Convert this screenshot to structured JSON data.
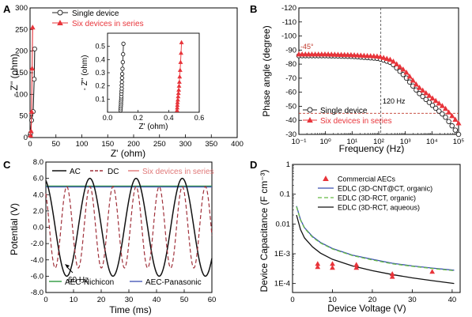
{
  "panels": {
    "A": {
      "letter": "A",
      "xlabel": "Z' (ohm)",
      "ylabel": "- Z'' (ohm)"
    },
    "B": {
      "letter": "B",
      "xlabel": "Frequency (Hz)",
      "ylabel": "Phase angle (degree)",
      "marker_label": "120 Hz",
      "angle_label": "-45°"
    },
    "C": {
      "letter": "C",
      "xlabel": "Time (ms)",
      "ylabel": "Potential (V)",
      "freq_label": "60 Hz"
    },
    "D": {
      "letter": "D",
      "xlabel": "Device Voltage (V)",
      "ylabel": "Device Capacitance (F cm⁻³)"
    }
  },
  "chart_data": [
    {
      "type": "scatter",
      "panel": "A",
      "xlabel": "Z' (ohm)",
      "ylabel": "- Z'' (ohm)",
      "xlim": [
        0,
        400
      ],
      "ylim": [
        0,
        300
      ],
      "xticks": [
        0,
        50,
        100,
        150,
        200,
        250,
        300,
        350,
        400
      ],
      "yticks": [
        0,
        50,
        100,
        150,
        200,
        250,
        300
      ],
      "legend_position": "top-right",
      "series": [
        {
          "name": "Single device",
          "color": "#222222",
          "marker": "open-circle",
          "x": [
            0.09,
            0.09,
            0.09,
            0.09,
            0.09,
            0.09,
            0.1,
            0.2,
            1.0,
            3.0,
            6.0,
            8.0,
            9.0
          ],
          "y": [
            0,
            0.2,
            0.3,
            0.4,
            0.5,
            1,
            2,
            5,
            10,
            40,
            60,
            135,
            205
          ]
        },
        {
          "name": "Six devices in series",
          "color": "#e8343a",
          "marker": "triangle",
          "x": [
            0.47,
            0.47,
            0.47,
            0.48,
            0.48,
            0.5,
            1.0,
            2.0,
            3.0,
            4.0,
            5.0
          ],
          "y": [
            0,
            0.2,
            0.3,
            0.4,
            0.5,
            1,
            5,
            15,
            60,
            160,
            255
          ]
        }
      ],
      "inset": {
        "xlabel": "Z' (ohm)",
        "ylabel": "- Z'' (ohm)",
        "xlim": [
          0,
          0.6
        ],
        "ylim": [
          0,
          0.6
        ],
        "xticks": [
          0.0,
          0.2,
          0.4,
          0.6
        ],
        "yticks": [
          0.1,
          0.2,
          0.3,
          0.4,
          0.5
        ],
        "series": [
          {
            "name": "Single device",
            "color": "#222222",
            "marker": "open-circle",
            "x": [
              0.085,
              0.086,
              0.087,
              0.088,
              0.088,
              0.089,
              0.09,
              0.09,
              0.091,
              0.092,
              0.093,
              0.093,
              0.094,
              0.095,
              0.096,
              0.098,
              0.1,
              0.102,
              0.104
            ],
            "y": [
              0.015,
              0.03,
              0.045,
              0.06,
              0.075,
              0.09,
              0.105,
              0.12,
              0.14,
              0.16,
              0.18,
              0.205,
              0.23,
              0.26,
              0.29,
              0.33,
              0.38,
              0.44,
              0.52
            ]
          },
          {
            "name": "Six devices in series",
            "color": "#e8343a",
            "marker": "triangle",
            "x": [
              0.455,
              0.456,
              0.457,
              0.458,
              0.46,
              0.462,
              0.464,
              0.466,
              0.468,
              0.47,
              0.472,
              0.475,
              0.478,
              0.481,
              0.484
            ],
            "y": [
              0.015,
              0.035,
              0.055,
              0.075,
              0.095,
              0.12,
              0.145,
              0.17,
              0.2,
              0.23,
              0.27,
              0.32,
              0.38,
              0.45,
              0.53
            ]
          }
        ]
      }
    },
    {
      "type": "line",
      "panel": "B",
      "xlabel": "Frequency (Hz)",
      "ylabel": "Phase angle (degree)",
      "xscale": "log",
      "xlim": [
        0.1,
        100000
      ],
      "ylim": [
        -120,
        -30
      ],
      "xticks": [
        0.1,
        1,
        10,
        100,
        1000,
        10000,
        100000
      ],
      "xticklabels": [
        "10⁻¹",
        "10⁰",
        "10¹",
        "10²",
        "10³",
        "10⁴",
        "10⁵"
      ],
      "yticks": [
        -120,
        -110,
        -100,
        -90,
        -80,
        -70,
        -60,
        -50,
        -40,
        -30
      ],
      "reference_lines": {
        "x": 120,
        "y": -45
      },
      "legend_position": "bottom-left",
      "series": [
        {
          "name": "Single device",
          "color": "#222222",
          "marker": "open-circle",
          "x": [
            0.1,
            1,
            10,
            100,
            300,
            1000,
            3000,
            10000,
            30000,
            100000
          ],
          "y": [
            -86,
            -86,
            -85.5,
            -84,
            -81,
            -71,
            -60,
            -51,
            -43,
            -30
          ]
        },
        {
          "name": "Six devices in series",
          "color": "#e8343a",
          "marker": "triangle",
          "x": [
            0.1,
            1,
            10,
            100,
            300,
            1000,
            3000,
            10000,
            30000,
            100000
          ],
          "y": [
            -87,
            -87,
            -86.5,
            -85.5,
            -83,
            -75,
            -64,
            -56,
            -49,
            -38
          ]
        }
      ]
    },
    {
      "type": "line",
      "panel": "C",
      "xlabel": "Time (ms)",
      "ylabel": "Potential (V)",
      "xlim": [
        0,
        60
      ],
      "ylim": [
        -8,
        8
      ],
      "xticks": [
        0,
        10,
        20,
        30,
        40,
        50,
        60
      ],
      "yticks": [
        -8,
        -6,
        -4,
        -2,
        0,
        2,
        4,
        6,
        8
      ],
      "legend_position": "top",
      "series": [
        {
          "name": "AC",
          "color": "#111111",
          "style": "solid",
          "amplitude": 6,
          "offset": 0,
          "period_ms": 16.7
        },
        {
          "name": "DC",
          "color": "#a0303a",
          "style": "dashed",
          "amplitude": 5,
          "offset": 0,
          "period_ms": 8.35
        },
        {
          "name": "Six devices in series",
          "color": "#e07878",
          "style": "solid",
          "value": 5
        },
        {
          "name": "AEC-Nichicon",
          "color": "#2d9a3e",
          "style": "solid",
          "value": 5.05
        },
        {
          "name": "AEC-Panasonic",
          "color": "#4a5bb8",
          "style": "solid",
          "value": 4.95
        }
      ]
    },
    {
      "type": "line",
      "panel": "D",
      "xlabel": "Device Voltage (V)",
      "ylabel": "Device Capacitance (F cm⁻³)",
      "yscale": "log",
      "xlim": [
        0,
        42
      ],
      "ylim": [
        5e-05,
        1
      ],
      "xticks": [
        0,
        10,
        20,
        30,
        40
      ],
      "yticks": [
        0.0001,
        0.001,
        0.01,
        0.1,
        1
      ],
      "yticklabels": [
        "1E-4",
        "1E-3",
        "0.01",
        "0.1",
        "1"
      ],
      "legend_position": "top-right",
      "series": [
        {
          "name": "Commercial AECs",
          "color": "#e8343a",
          "marker": "triangle",
          "x": [
            6.3,
            6.3,
            10,
            10,
            16,
            16,
            25,
            25,
            35
          ],
          "y": [
            0.00046,
            0.00036,
            0.00046,
            0.00034,
            0.00043,
            0.00034,
            0.00021,
            0.00017,
            0.00025
          ]
        },
        {
          "name": "EDLC (3D-CNT@CT, organic)",
          "color": "#3a4fb0",
          "style": "solid",
          "x": [
            1,
            2,
            3,
            5,
            7,
            10,
            15,
            20,
            25,
            30,
            35,
            40.5
          ],
          "y": [
            0.04,
            0.014,
            0.0075,
            0.0038,
            0.0024,
            0.0015,
            0.0009,
            0.00065,
            0.00048,
            0.00039,
            0.00033,
            0.00028
          ]
        },
        {
          "name": "EDLC (3D-RCT, organic)",
          "color": "#66bb44",
          "style": "dashed",
          "x": [
            1,
            2,
            3,
            5,
            7,
            10,
            15,
            20,
            25,
            30,
            35,
            40.5
          ],
          "y": [
            0.038,
            0.0135,
            0.0072,
            0.0036,
            0.0023,
            0.00145,
            0.00087,
            0.00062,
            0.00046,
            0.00038,
            0.00032,
            0.00027
          ]
        },
        {
          "name": "EDLC (3D-RCT, aqueous)",
          "color": "#111111",
          "style": "solid",
          "x": [
            1,
            2,
            3,
            5,
            7,
            10,
            15,
            20,
            25,
            30,
            35,
            40.5
          ],
          "y": [
            0.02,
            0.0065,
            0.0034,
            0.0017,
            0.00105,
            0.00065,
            0.00039,
            0.00027,
            0.0002,
            0.000155,
            0.000125,
            0.0001
          ]
        }
      ]
    }
  ]
}
